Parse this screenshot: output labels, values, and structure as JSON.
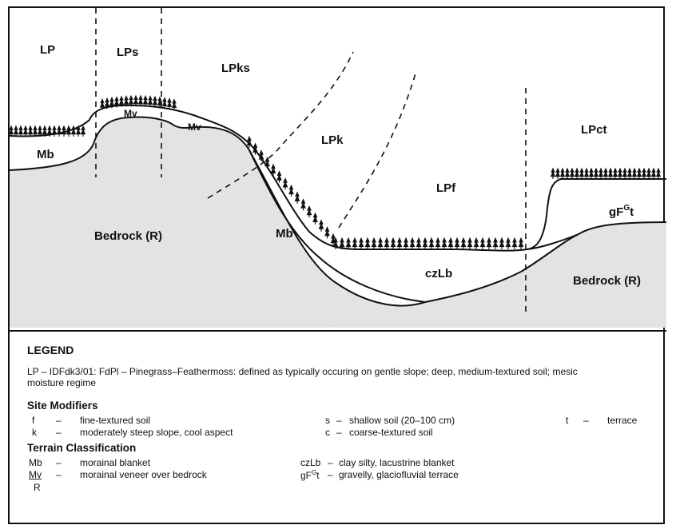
{
  "diagram": {
    "zone_labels": {
      "lp": "LP",
      "lps": "LPs",
      "lpks": "LPks",
      "lpk": "LPk",
      "lpct": "LPct",
      "lpf": "LPf"
    },
    "unit_labels": {
      "mb_left": "Mb",
      "mv_1": "Mv",
      "mv_2": "Mv",
      "bedrock_left": "Bedrock (R)",
      "mb_center": "Mb",
      "czlb": "czLb",
      "gfgt_main": "gF",
      "gfgt_sup": "G",
      "gfgt_end": "t",
      "bedrock_right": "Bedrock (R)"
    }
  },
  "legend": {
    "title": "LEGEND",
    "lp_line1": "LP – IDFdk3/01: FdPl – Pinegrass–Feathermoss: defined as typically occuring on gentle slope; deep, medium-textured soil; mesic",
    "lp_line2": "moisture regime",
    "site_modifiers": {
      "heading": "Site Modifiers",
      "items": [
        {
          "code": "f",
          "dash": "–",
          "desc": "fine-textured soil"
        },
        {
          "code": "k",
          "dash": "–",
          "desc": "moderately steep slope, cool aspect"
        },
        {
          "code": "s",
          "dash": "–",
          "desc": "shallow soil (20–100 cm)"
        },
        {
          "code": "c",
          "dash": "–",
          "desc": "coarse-textured soil"
        },
        {
          "code": "t",
          "dash": "–",
          "desc": "terrace"
        }
      ]
    },
    "terrain": {
      "heading": "Terrain Classification",
      "items": [
        {
          "code": "Mb",
          "dash": "–",
          "desc": "morainal blanket"
        },
        {
          "code_top": "Mv",
          "code_bottom": "R",
          "dash": "–",
          "desc": "morainal veneer over bedrock"
        },
        {
          "code": "czLb",
          "dash": "–",
          "desc": "clay silty, lacustrine blanket"
        },
        {
          "code_main": "gF",
          "code_sup": "G",
          "code_end": "t",
          "dash": "–",
          "desc": "gravelly, glaciofluvial terrace"
        }
      ]
    }
  }
}
